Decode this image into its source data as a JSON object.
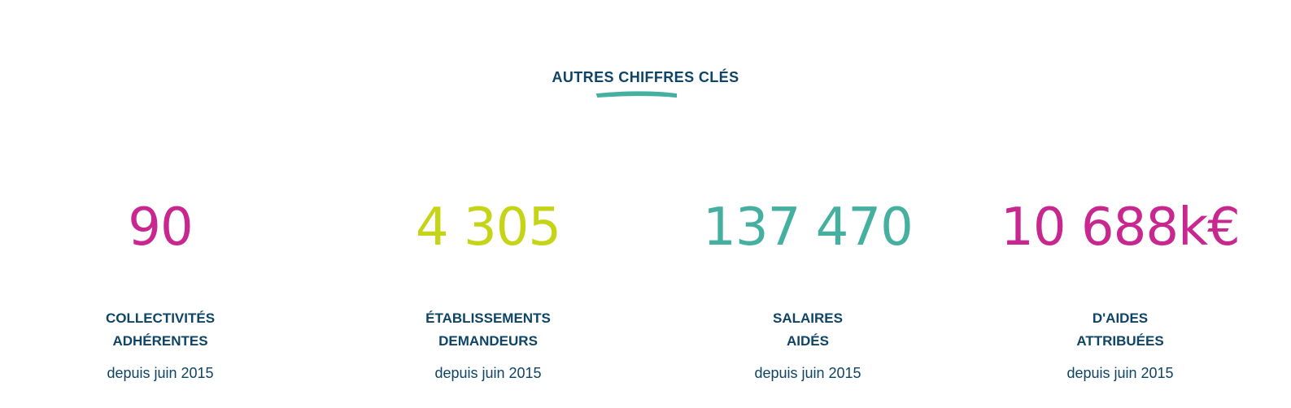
{
  "section": {
    "title": "AUTRES CHIFFRES CLÉS",
    "accent_color": "#45b0a0"
  },
  "stats": [
    {
      "value": "90",
      "color": "#c8278f",
      "label_line1": "COLLECTIVITÉS",
      "label_line2": "ADHÉRENTES",
      "subtitle": "depuis juin 2015"
    },
    {
      "value": "4 305",
      "color": "#c5d417",
      "label_line1": "ÉTABLISSEMENTS",
      "label_line2": "DEMANDEURS",
      "subtitle": "depuis juin 2015"
    },
    {
      "value": "137 470",
      "color": "#45b0a0",
      "label_line1": "SALAIRES",
      "label_line2": "AIDÉS",
      "subtitle": "depuis juin 2015"
    },
    {
      "value": "10 688k€",
      "color": "#c8278f",
      "label_line1": "D'AIDES",
      "label_line2": "ATTRIBUÉES",
      "subtitle": "depuis juin 2015"
    }
  ]
}
